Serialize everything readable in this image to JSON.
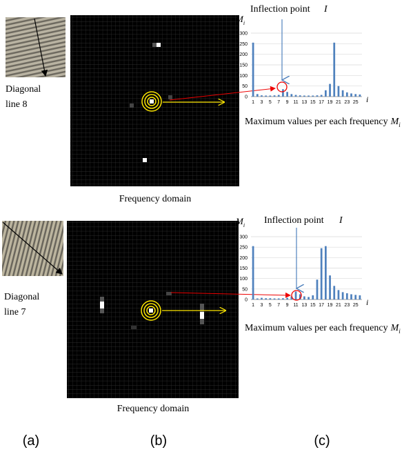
{
  "captions": {
    "a": "(a)",
    "b": "(b)",
    "c": "(c)"
  },
  "rows": [
    {
      "image_label": [
        "Diagonal",
        "line 8"
      ],
      "domain_caption": "Frequency domain"
    },
    {
      "image_label": [
        "Diagonal",
        "line 7"
      ],
      "domain_caption": "Frequency domain"
    }
  ],
  "chart_data": [
    {
      "type": "bar",
      "y_label": "M",
      "y_label_sub": "i",
      "x_label": "i",
      "annotation": "Inflection point",
      "annotation_symbol": "I",
      "caption": "Maximum values per each frequency",
      "caption_symbol": "M",
      "caption_symbol_sub": "i",
      "categories": [
        "1",
        null,
        "3",
        null,
        "5",
        null,
        "7",
        null,
        "9",
        null,
        "11",
        null,
        "13",
        null,
        "15",
        null,
        "17",
        null,
        "19",
        null,
        "21",
        null,
        "23",
        null,
        "25",
        null
      ],
      "values": [
        255,
        12,
        6,
        5,
        5,
        6,
        8,
        35,
        22,
        12,
        8,
        6,
        5,
        5,
        5,
        6,
        8,
        30,
        60,
        255,
        50,
        30,
        20,
        15,
        12,
        10
      ],
      "color": "#4f81bd",
      "ylim": [
        0,
        300
      ],
      "yticks": [
        0,
        50,
        100,
        150,
        200,
        250,
        300
      ],
      "grid": true
    },
    {
      "type": "bar",
      "y_label": "M",
      "y_label_sub": "i",
      "x_label": "i",
      "annotation": "Inflection point",
      "annotation_symbol": "I",
      "caption": "Maximum values per each frequency",
      "caption_symbol": "M",
      "caption_symbol_sub": "i",
      "categories": [
        "1",
        null,
        "3",
        null,
        "5",
        null,
        "7",
        null,
        "9",
        null,
        "11",
        null,
        "13",
        null,
        "15",
        null,
        "17",
        null,
        "19",
        null,
        "21",
        null,
        "23",
        null,
        "25",
        null
      ],
      "values": [
        255,
        5,
        8,
        6,
        6,
        5,
        5,
        6,
        8,
        15,
        38,
        25,
        15,
        12,
        20,
        95,
        245,
        255,
        115,
        65,
        45,
        35,
        30,
        25,
        22,
        20
      ],
      "color": "#4f81bd",
      "ylim": [
        0,
        300
      ],
      "yticks": [
        0,
        50,
        100,
        150,
        200,
        250,
        300
      ],
      "grid": true
    }
  ]
}
